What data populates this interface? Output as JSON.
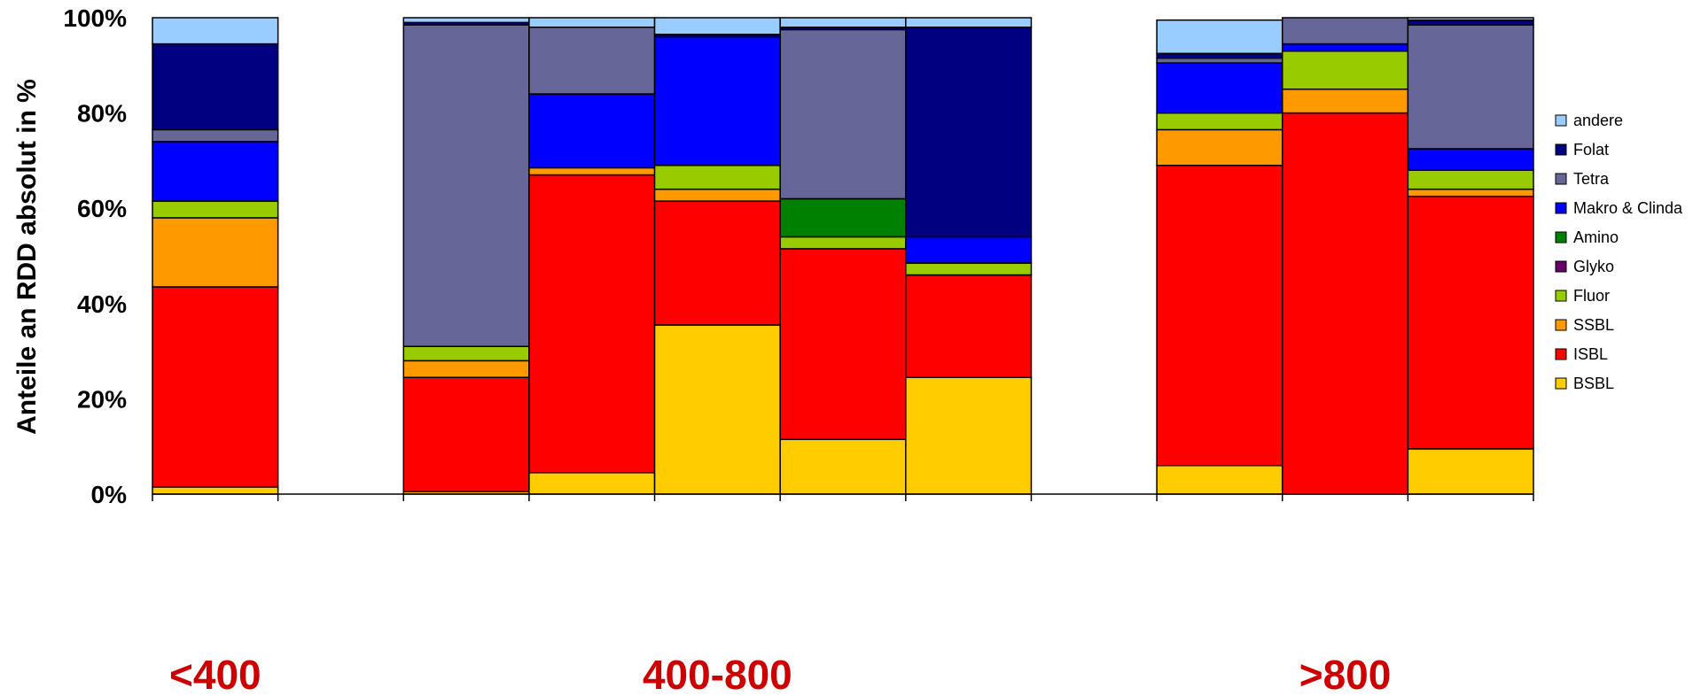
{
  "chart_data": {
    "type": "bar",
    "stacked": true,
    "percent": true,
    "ylabel": "Anteile an RDD absolut in %",
    "y_ticks": [
      "0%",
      "20%",
      "40%",
      "60%",
      "80%",
      "100%"
    ],
    "ylim": [
      0,
      100
    ],
    "legend_position": "right",
    "groups": [
      {
        "label": "<400",
        "bars": [
          0
        ]
      },
      {
        "label": "400-800",
        "bars": [
          2,
          3,
          4,
          5,
          6
        ]
      },
      {
        "label": ">800",
        "bars": [
          8,
          9,
          10
        ]
      }
    ],
    "slots": 11,
    "empty_slots": [
      1,
      7
    ],
    "series": [
      {
        "name": "BSBL",
        "color": "#FFCC00",
        "values": [
          1.5,
          0.5,
          4.5,
          35.5,
          11.5,
          24.5,
          6.0,
          0,
          9.5
        ]
      },
      {
        "name": "ISBL",
        "color": "#FF0000",
        "values": [
          42.0,
          24.0,
          62.5,
          26.0,
          40.0,
          21.5,
          63.0,
          80.0,
          53.0
        ]
      },
      {
        "name": "SSBL",
        "color": "#FF9900",
        "values": [
          14.5,
          3.5,
          1.5,
          2.5,
          0,
          0,
          7.5,
          5.0,
          1.5
        ]
      },
      {
        "name": "Fluor",
        "color": "#99CC00",
        "values": [
          3.5,
          3.0,
          0,
          5.0,
          2.5,
          2.5,
          3.5,
          8.0,
          4.0
        ]
      },
      {
        "name": "Glyko",
        "color": "#660066",
        "values": [
          0,
          0,
          0,
          0,
          0,
          0,
          0,
          0,
          0
        ]
      },
      {
        "name": "Amino",
        "color": "#008000",
        "values": [
          0,
          0,
          0,
          0,
          8.0,
          0,
          0,
          0,
          0
        ]
      },
      {
        "name": "Makro & Clinda",
        "color": "#0000FF",
        "values": [
          12.5,
          0,
          15.5,
          27.0,
          0,
          5.5,
          10.5,
          1.5,
          4.5
        ]
      },
      {
        "name": "Tetra",
        "color": "#666699",
        "values": [
          2.5,
          67.5,
          14.0,
          0,
          35.5,
          0,
          1.0,
          5.5,
          26.0
        ]
      },
      {
        "name": "Folat",
        "color": "#000080",
        "values": [
          18.0,
          0.5,
          0,
          0.5,
          0.5,
          44.0,
          1.0,
          0,
          1.0
        ]
      },
      {
        "name": "andere",
        "color": "#99CCFF",
        "values": [
          5.5,
          1.0,
          2.0,
          3.5,
          2.0,
          2.0,
          7.0,
          0,
          0.5
        ]
      }
    ]
  }
}
